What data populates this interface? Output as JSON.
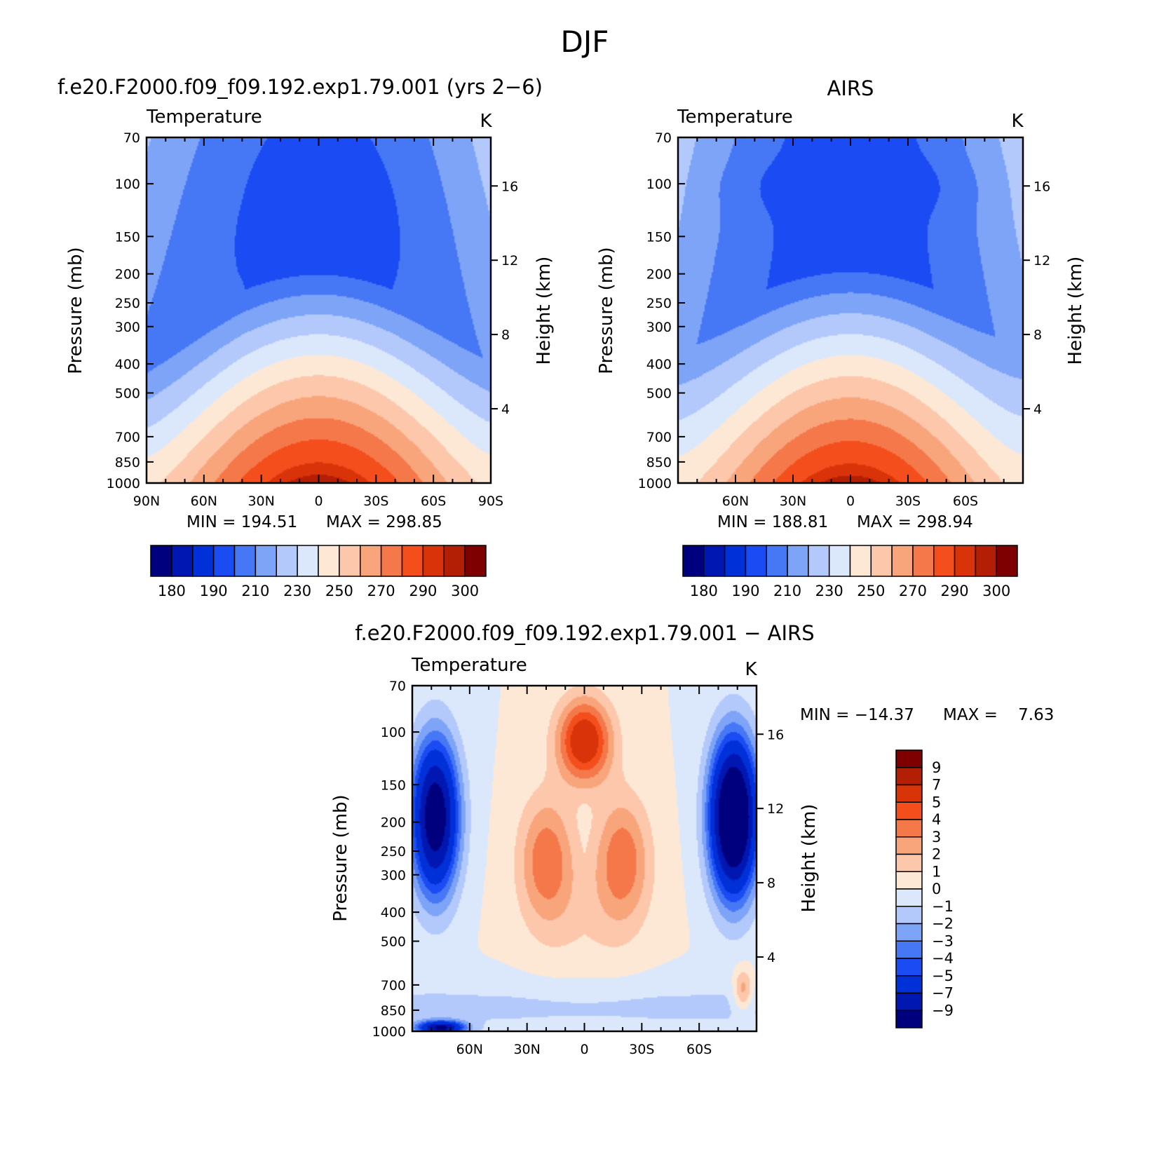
{
  "suptitle": "DJF",
  "colors": {
    "temperature_scale": [
      "#00007f",
      "#0017b2",
      "#0030d8",
      "#1b4bf3",
      "#4677f5",
      "#7ea4f8",
      "#b3c9fb",
      "#dbe8fc",
      "#fde8d5",
      "#fcc7ab",
      "#f9a57c",
      "#f5784a",
      "#f44e1d",
      "#d93309",
      "#b31f04",
      "#7f0000"
    ],
    "difference_scale": [
      "#00007f",
      "#0017b2",
      "#0030d8",
      "#1b4bf3",
      "#4677f5",
      "#7ea4f8",
      "#b3c9fb",
      "#dbe8fc",
      "#fde8d5",
      "#fcc7ab",
      "#f9a57c",
      "#f5784a",
      "#f44e1d",
      "#d93309",
      "#b31f04",
      "#7f0000"
    ]
  },
  "chart_data": [
    {
      "id": "model",
      "type": "heatmap",
      "title": "f.e20.F2000.f09_f09.192.exp1.79.001 (yrs 2−6)",
      "variable": "Temperature",
      "units": "K",
      "ylabel": "Pressure (mb)",
      "ylabel_right": "Height (km)",
      "xticks": [
        "90N",
        "60N",
        "30N",
        "0",
        "30S",
        "60S",
        "90S"
      ],
      "yticks": [
        "70",
        "100",
        "150",
        "200",
        "250",
        "300",
        "400",
        "500",
        "700",
        "850",
        "1000"
      ],
      "height_ticks": [
        "16",
        "12",
        "8",
        "4"
      ],
      "min_label": "MIN = 194.51",
      "max_label": "MAX = 298.85",
      "min": 194.51,
      "max": 298.85,
      "levels": [
        180,
        185,
        190,
        200,
        210,
        220,
        230,
        240,
        250,
        260,
        270,
        280,
        290,
        295,
        300
      ],
      "colorbar_labels": [
        "180",
        "190",
        "210",
        "230",
        "250",
        "270",
        "290",
        "300"
      ]
    },
    {
      "id": "obs",
      "type": "heatmap",
      "title": "AIRS",
      "variable": "Temperature",
      "units": "K",
      "ylabel": "Pressure (mb)",
      "ylabel_right": "Height (km)",
      "xticks": [
        "60N",
        "30N",
        "0",
        "30S",
        "60S"
      ],
      "yticks": [
        "70",
        "100",
        "150",
        "200",
        "250",
        "300",
        "400",
        "500",
        "700",
        "850",
        "1000"
      ],
      "height_ticks": [
        "16",
        "12",
        "8",
        "4"
      ],
      "min_label": "MIN = 188.81",
      "max_label": "MAX = 298.94",
      "min": 188.81,
      "max": 298.94,
      "levels": [
        180,
        185,
        190,
        200,
        210,
        220,
        230,
        240,
        250,
        260,
        270,
        280,
        290,
        295,
        300
      ],
      "colorbar_labels": [
        "180",
        "190",
        "210",
        "230",
        "250",
        "270",
        "290",
        "300"
      ]
    },
    {
      "id": "diff",
      "type": "heatmap",
      "title": "f.e20.F2000.f09_f09.192.exp1.79.001 − AIRS",
      "variable": "Temperature",
      "units": "K",
      "ylabel": "Pressure (mb)",
      "ylabel_right": "Height (km)",
      "xticks": [
        "60N",
        "30N",
        "0",
        "30S",
        "60S"
      ],
      "yticks": [
        "70",
        "100",
        "150",
        "200",
        "250",
        "300",
        "400",
        "500",
        "700",
        "850",
        "1000"
      ],
      "height_ticks": [
        "16",
        "12",
        "8",
        "4"
      ],
      "min_label": "MIN = −14.37",
      "max_label": "MAX =    7.63",
      "min": -14.37,
      "max": 7.63,
      "levels": [
        -9,
        -7,
        -5,
        -4,
        -3,
        -2,
        -1,
        0,
        1,
        2,
        3,
        4,
        5,
        7,
        9
      ],
      "colorbar_labels": [
        "9",
        "7",
        "5",
        "4",
        "3",
        "2",
        "1",
        "0",
        "−1",
        "−2",
        "−3",
        "−4",
        "−5",
        "−7",
        "−9"
      ]
    }
  ]
}
